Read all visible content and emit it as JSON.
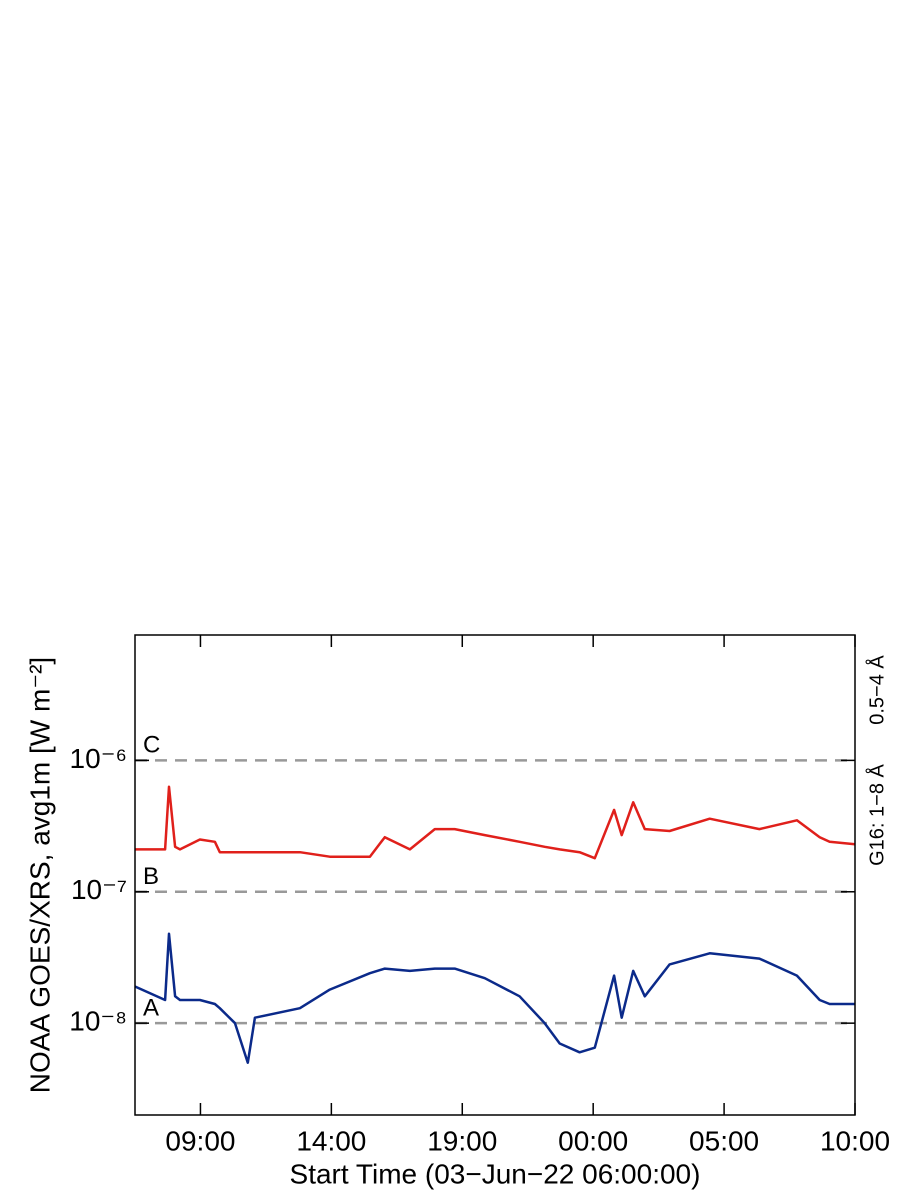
{
  "chart_data": {
    "type": "line",
    "xlabel": "Start Time (03−Jun−22 06:00:00)",
    "ylabel": "NOAA GOES/XRS, avg1m [W m⁻²]",
    "x": [
      0.5,
      1.65,
      1.8,
      2.03,
      2.22,
      2.98,
      3.55,
      3.74,
      4.32,
      4.81,
      5.08,
      6.8,
      7.94,
      9.47,
      10.04,
      11.0,
      11.95,
      12.71,
      13.86,
      15.19,
      16.15,
      16.72,
      17.48,
      18.06,
      18.8,
      19.09,
      19.53,
      19.97,
      20.92,
      22.45,
      24.35,
      25.78,
      26.65,
      27.03,
      28
    ],
    "series": [
      {
        "name": "G16: 1−8 Å",
        "color": "#e0201b",
        "values": [
          2.1e-07,
          2.1e-07,
          6.3e-07,
          2.2e-07,
          2.1e-07,
          2.5e-07,
          2.4e-07,
          2e-07,
          2e-07,
          2e-07,
          2e-07,
          2e-07,
          1.85e-07,
          1.85e-07,
          2.6e-07,
          2.1e-07,
          3e-07,
          3e-07,
          2.7e-07,
          2.4e-07,
          2.2e-07,
          2.1e-07,
          2e-07,
          1.8e-07,
          4.2e-07,
          2.7e-07,
          4.8e-07,
          3e-07,
          2.9e-07,
          3.6e-07,
          3e-07,
          3.5e-07,
          2.6e-07,
          2.4e-07,
          2.3e-07
        ]
      },
      {
        "name": "0.5−4 Å",
        "color": "#0b2a8a",
        "values": [
          1.9e-08,
          1.5e-08,
          4.8e-08,
          1.6e-08,
          1.5e-08,
          1.5e-08,
          1.4e-08,
          1.3e-08,
          1e-08,
          5e-09,
          1.1e-08,
          1.3e-08,
          1.8e-08,
          2.4e-08,
          2.6e-08,
          2.5e-08,
          2.6e-08,
          2.6e-08,
          2.2e-08,
          1.6e-08,
          1e-08,
          7e-09,
          6e-09,
          6.5e-09,
          2.3e-08,
          1.1e-08,
          2.5e-08,
          1.6e-08,
          2.8e-08,
          3.4e-08,
          3.1e-08,
          2.3e-08,
          1.5e-08,
          1.4e-08,
          1.4e-08
        ]
      }
    ],
    "xlim": [
      0.5,
      28
    ],
    "xticks": [
      {
        "value": 3,
        "label": "09:00"
      },
      {
        "value": 8,
        "label": "14:00"
      },
      {
        "value": 13,
        "label": "19:00"
      },
      {
        "value": 18,
        "label": "00:00"
      },
      {
        "value": 23,
        "label": "05:00"
      },
      {
        "value": 28,
        "label": "10:00"
      }
    ],
    "ylim": [
      2e-09,
      9e-06
    ],
    "ylog": true,
    "yticks": [
      {
        "value": 1e-08,
        "label": "10⁻⁸"
      },
      {
        "value": 1e-07,
        "label": "10⁻⁷"
      },
      {
        "value": 1e-06,
        "label": "10⁻⁶"
      }
    ],
    "class_lines": [
      {
        "value": 1e-08,
        "label": "A"
      },
      {
        "value": 1e-07,
        "label": "B"
      },
      {
        "value": 1e-06,
        "label": "C"
      }
    ],
    "class_line_color": "#999999"
  }
}
